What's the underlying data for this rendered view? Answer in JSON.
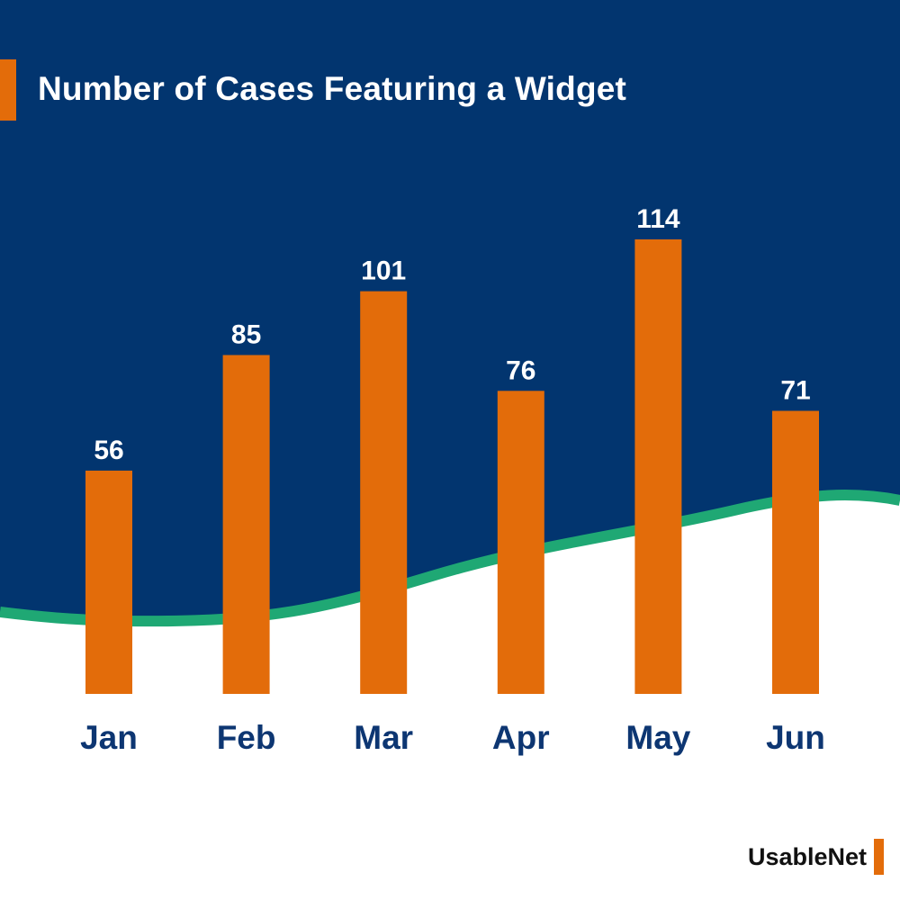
{
  "title": "Number of Cases Featuring a Widget",
  "brand": {
    "name": "UsableNet"
  },
  "colors": {
    "background_top": "#02356f",
    "background_bottom": "#ffffff",
    "wave": "#1fa874",
    "bar": "#e36c0a",
    "value_text": "#ffffff",
    "category_text": "#0d3672",
    "brand_text": "#111111"
  },
  "chart_data": {
    "type": "bar",
    "title": "Number of Cases Featuring a Widget",
    "categories": [
      "Jan",
      "Feb",
      "Mar",
      "Apr",
      "May",
      "Jun"
    ],
    "values": [
      56,
      85,
      101,
      76,
      114,
      71
    ],
    "value_labels": [
      "56",
      "85",
      "101",
      "76",
      "114",
      "71"
    ],
    "xlabel": "",
    "ylabel": "",
    "ylim": [
      0,
      114
    ],
    "grid": false,
    "legend": "none",
    "data_labels": "above bars"
  }
}
